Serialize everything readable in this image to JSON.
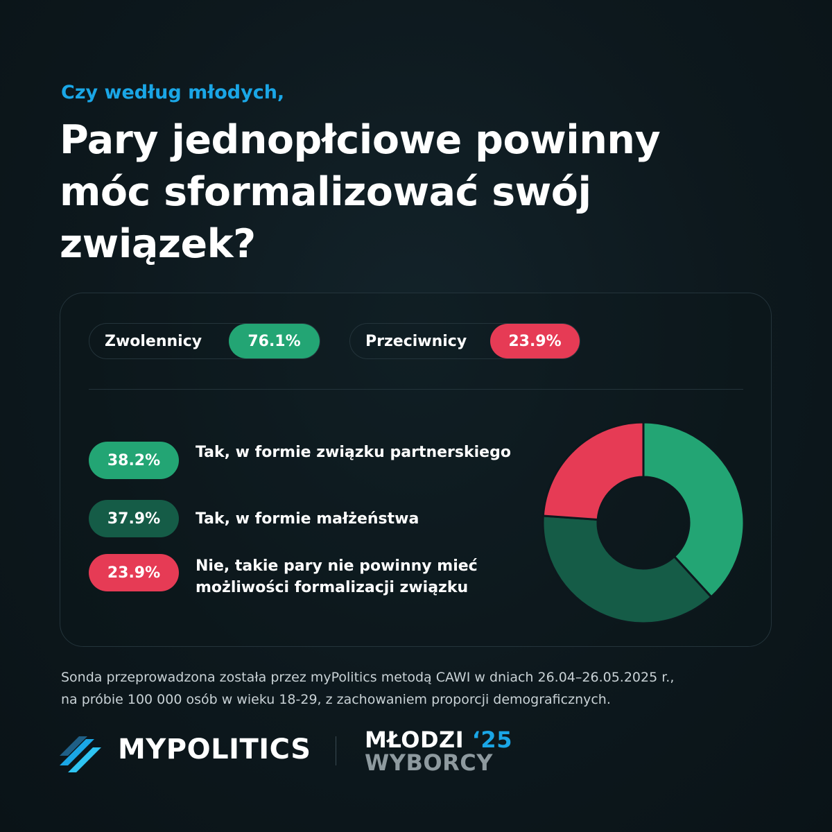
{
  "header": {
    "kicker": "Czy według młodych,",
    "title": "Pary jednopłciowe powinny móc sformalizować swój związek?"
  },
  "summary": {
    "supporters": {
      "label": "Zwolennicy",
      "value": "76.1%"
    },
    "opponents": {
      "label": "Przeciwnicy",
      "value": "23.9%"
    }
  },
  "legend": [
    {
      "value": "38.2%",
      "label": "Tak, w formie związku partnerskiego"
    },
    {
      "value": "37.9%",
      "label": "Tak, w formie małżeństwa"
    },
    {
      "value": "23.9%",
      "label": "Nie, takie pary nie powinny mieć możliwości formalizacji związku"
    }
  ],
  "footnote": {
    "line1": "Sonda przeprowadzona została przez myPolitics metodą CAWI w dniach 26.04–26.05.2025 r.,",
    "line2": "na próbie 100 000 osób w wieku 18-29, z zachowaniem proporcji demograficznych."
  },
  "brand": {
    "name": "MYPOLITICS",
    "logo2_line1": "MŁODZI",
    "logo2_year": "‘25",
    "logo2_line2": "WYBORCY"
  },
  "colors": {
    "accent_blue": "#1aa6e6",
    "green_light": "#23a574",
    "green_dark": "#155c47",
    "red": "#e63b55",
    "background": "#0d181d"
  },
  "chart_data": {
    "type": "pie",
    "variant": "donut",
    "categories": [
      "Tak, w formie związku partnerskiego",
      "Tak, w formie małżeństwa",
      "Nie, takie pary nie powinny mieć możliwości formalizacji związku"
    ],
    "values": [
      38.2,
      37.9,
      23.9
    ],
    "colors": [
      "#23a574",
      "#155c47",
      "#e63b55"
    ],
    "start_angle_deg": 0,
    "direction": "clockwise"
  }
}
